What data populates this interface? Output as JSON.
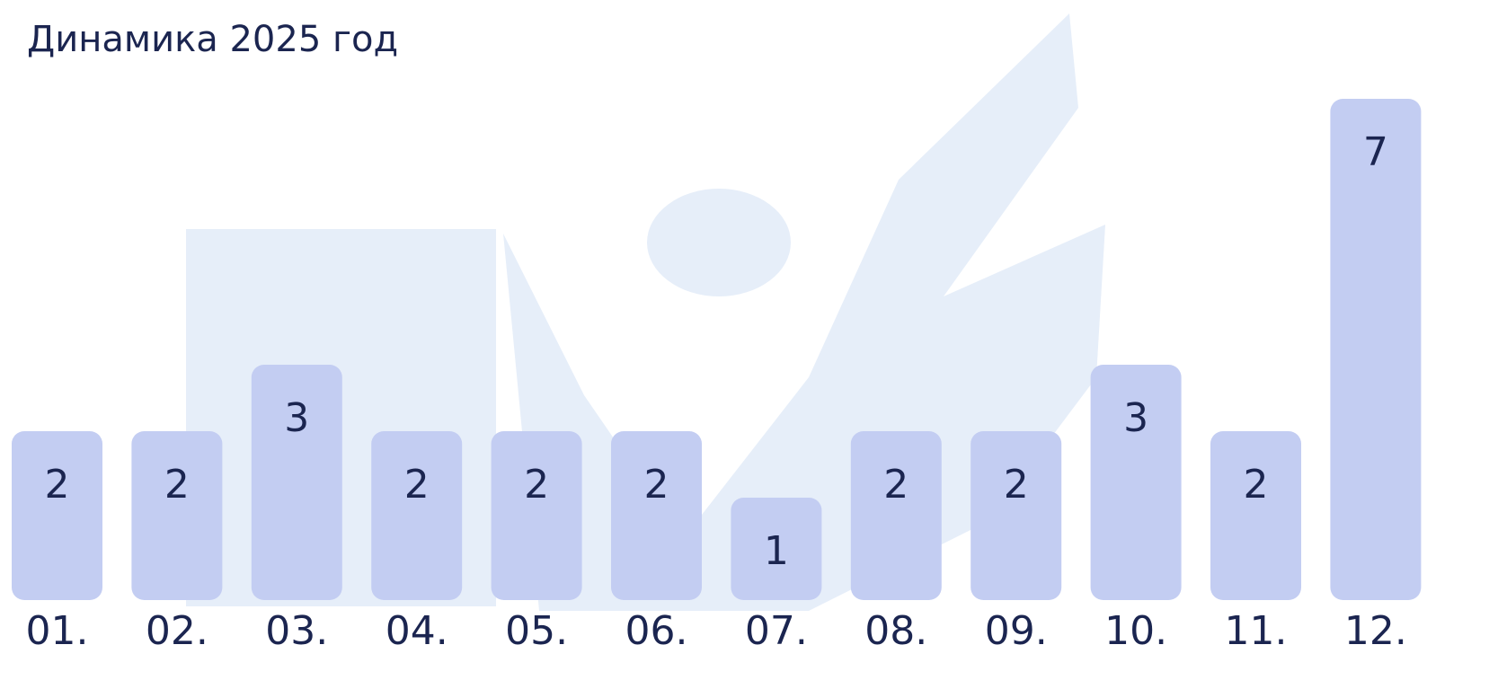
{
  "chart_data": {
    "type": "bar",
    "title": "Динамика 2025 год",
    "categories": [
      "01.",
      "02.",
      "03.",
      "04.",
      "05.",
      "06.",
      "07.",
      "08.",
      "09.",
      "10.",
      "11.",
      "12."
    ],
    "values": [
      2,
      2,
      3,
      2,
      2,
      2,
      1,
      2,
      2,
      3,
      2,
      7
    ],
    "color": "#c3cdf2"
  }
}
